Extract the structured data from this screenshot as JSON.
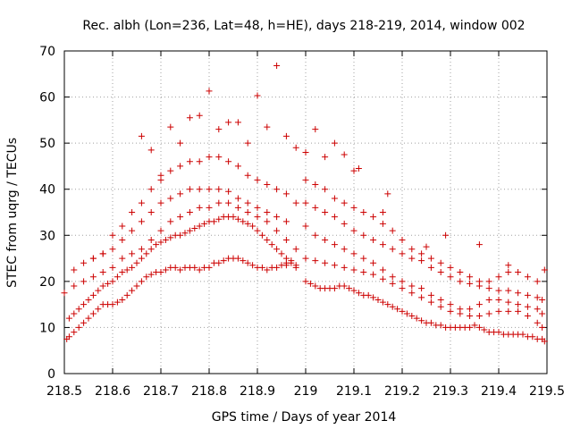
{
  "chart_data": {
    "type": "scatter",
    "title": "Rec. albh (Lon=236, Lat=48, h=HE), days 218-219, 2014, window 002",
    "xlabel": "GPS time / Days of year 2014",
    "ylabel": "STEC from uqrg / TECUs",
    "xlim": [
      218.5,
      219.5
    ],
    "ylim": [
      0,
      70
    ],
    "xticks": [
      "218.5",
      "218.6",
      "218.7",
      "218.8",
      "218.9",
      "219",
      "219.1",
      "219.2",
      "219.3",
      "219.4",
      "219.5"
    ],
    "yticks": [
      "0",
      "10",
      "20",
      "30",
      "40",
      "50",
      "60",
      "70"
    ],
    "grid": true,
    "marker": "+",
    "color": "#cc0000",
    "series": [
      {
        "x": [
          218.505,
          218.51,
          218.52,
          218.53,
          218.54,
          218.55,
          218.56,
          218.57,
          218.58,
          218.59,
          218.6,
          218.61,
          218.62,
          218.63,
          218.64,
          218.65,
          218.66,
          218.67,
          218.68,
          218.69,
          218.7,
          218.71,
          218.72,
          218.73,
          218.74,
          218.75,
          218.76,
          218.77,
          218.78,
          218.79,
          218.8,
          218.81,
          218.82,
          218.83,
          218.84,
          218.85,
          218.86,
          218.87,
          218.88,
          218.89,
          218.9,
          218.91,
          218.92,
          218.93,
          218.94,
          218.95,
          218.96,
          218.97,
          218.98
        ],
        "y": [
          7.5,
          8,
          9,
          10,
          11,
          12,
          13,
          14,
          15,
          15,
          15,
          15.5,
          16,
          17,
          18,
          19,
          20,
          21,
          21.5,
          22,
          22,
          22.5,
          23,
          23,
          22.5,
          23,
          23,
          23,
          22.5,
          23,
          23,
          24,
          24,
          24.5,
          25,
          25,
          25,
          24.5,
          24,
          23.5,
          23,
          23,
          22.5,
          23,
          23,
          23.5,
          24,
          24,
          23.5
        ]
      },
      {
        "x": [
          218.51,
          218.52,
          218.53,
          218.54,
          218.55,
          218.56,
          218.57,
          218.58,
          218.59,
          218.6,
          218.61,
          218.62,
          218.63,
          218.64,
          218.65,
          218.66,
          218.67,
          218.68,
          218.69,
          218.7,
          218.71,
          218.72,
          218.73,
          218.74,
          218.75,
          218.76,
          218.77,
          218.78,
          218.79,
          218.8,
          218.81,
          218.82,
          218.83,
          218.84,
          218.85,
          218.86,
          218.87,
          218.88,
          218.89,
          218.9,
          218.91,
          218.92,
          218.93,
          218.94,
          218.95,
          218.96,
          218.97
        ],
        "y": [
          12,
          13,
          14,
          15,
          16,
          17,
          18,
          19,
          19.5,
          20,
          21,
          22,
          22.5,
          23,
          24,
          25,
          26,
          27,
          28,
          28.5,
          29,
          29.5,
          30,
          30,
          30.5,
          31,
          31.5,
          32,
          32.5,
          33,
          33,
          33.5,
          34,
          34,
          34,
          33.5,
          33,
          32.5,
          32,
          31,
          30,
          29,
          28,
          27,
          26,
          25,
          24.5
        ]
      },
      {
        "x": [
          218.5,
          218.52,
          218.54,
          218.56,
          218.58,
          218.6,
          218.62,
          218.64,
          218.66,
          218.68,
          218.7,
          218.72,
          218.74,
          218.76,
          218.78,
          218.8,
          218.82,
          218.84,
          218.86,
          218.88,
          218.9,
          218.92,
          218.94,
          218.96,
          218.98
        ],
        "y": [
          17.5,
          19,
          20,
          21,
          22,
          23,
          25,
          26,
          27,
          29,
          31,
          33,
          34,
          35,
          36,
          36,
          37,
          37,
          36,
          35,
          34,
          33,
          31,
          29,
          27
        ]
      },
      {
        "x": [
          218.52,
          218.54,
          218.56,
          218.58,
          218.6,
          218.62,
          218.64,
          218.66,
          218.68,
          218.7,
          218.72,
          218.74,
          218.76,
          218.78,
          218.8,
          218.82,
          218.84,
          218.86,
          218.88,
          218.9,
          218.92,
          218.94,
          218.96
        ],
        "y": [
          22.5,
          24,
          25,
          26,
          27,
          29,
          31,
          33,
          35,
          37,
          38,
          39,
          40,
          40,
          40,
          40,
          39.5,
          38,
          37,
          36,
          35,
          34,
          33
        ]
      },
      {
        "x": [
          218.56,
          218.58,
          218.6,
          218.62,
          218.64,
          218.66,
          218.68,
          218.7,
          218.72,
          218.74,
          218.76,
          218.78,
          218.8,
          218.82,
          218.84,
          218.86,
          218.88,
          218.9,
          218.92,
          218.94,
          218.96,
          218.98
        ],
        "y": [
          25,
          26,
          30,
          32,
          35,
          37,
          40,
          42,
          44,
          45,
          46,
          46,
          47,
          47,
          46,
          45,
          43,
          42,
          41,
          40,
          39,
          37
        ]
      },
      {
        "x": [
          218.66,
          218.68,
          218.7,
          218.72,
          218.74,
          218.76,
          218.78,
          218.8,
          218.82,
          218.84,
          218.86,
          218.88,
          218.9,
          218.92,
          218.94,
          218.96,
          218.98
        ],
        "y": [
          51.5,
          48.5,
          43,
          53.5,
          50,
          55.5,
          56,
          61.3,
          53,
          54.5,
          54.5,
          50,
          60.3,
          53.5,
          66.8,
          51.5,
          49
        ]
      },
      {
        "x": [
          218.96,
          218.98,
          219.0,
          219.01,
          219.02,
          219.03,
          219.04,
          219.05,
          219.06,
          219.07,
          219.08,
          219.09,
          219.1,
          219.11,
          219.12,
          219.13,
          219.14,
          219.15,
          219.16,
          219.17,
          219.18,
          219.19,
          219.2,
          219.21,
          219.22,
          219.23,
          219.24,
          219.25,
          219.26,
          219.27,
          219.28,
          219.29,
          219.3,
          219.31,
          219.32,
          219.33,
          219.34,
          219.35,
          219.36,
          219.37,
          219.38,
          219.39,
          219.4,
          219.41,
          219.42,
          219.43,
          219.44,
          219.45,
          219.46,
          219.47,
          219.48,
          219.49,
          219.495
        ],
        "y": [
          23.5,
          23,
          20,
          19.5,
          19,
          18.5,
          18.5,
          18.5,
          18.5,
          19,
          19,
          18.5,
          18,
          17.5,
          17,
          17,
          16.5,
          16,
          15.5,
          15,
          14.5,
          14,
          13.5,
          13,
          12.5,
          12,
          11.5,
          11,
          11,
          10.5,
          10.5,
          10,
          10,
          10,
          10,
          10,
          10,
          10.5,
          10,
          9.5,
          9,
          9,
          9,
          8.5,
          8.5,
          8.5,
          8.5,
          8.5,
          8,
          8,
          7.5,
          7.5,
          7
        ]
      },
      {
        "x": [
          219.0,
          219.02,
          219.04,
          219.06,
          219.08,
          219.1,
          219.12,
          219.14,
          219.16,
          219.18,
          219.2,
          219.22,
          219.24,
          219.26,
          219.28,
          219.3,
          219.32,
          219.34,
          219.36,
          219.38,
          219.4,
          219.42,
          219.44,
          219.46,
          219.48,
          219.49
        ],
        "y": [
          25,
          24.5,
          24,
          23.5,
          23,
          22.5,
          22,
          21.5,
          20.5,
          19.5,
          18.5,
          17.5,
          16.5,
          15.5,
          14.5,
          13.5,
          13,
          12.5,
          12.5,
          13,
          13.5,
          13.5,
          13.5,
          12.5,
          11,
          10
        ]
      },
      {
        "x": [
          219.0,
          219.02,
          219.04,
          219.06,
          219.08,
          219.1,
          219.12,
          219.14,
          219.16,
          219.18,
          219.2,
          219.22,
          219.24,
          219.26,
          219.28,
          219.3,
          219.32,
          219.34,
          219.36,
          219.38,
          219.4,
          219.42,
          219.44,
          219.46,
          219.48,
          219.49
        ],
        "y": [
          32,
          30,
          29,
          28,
          27,
          26,
          25,
          24,
          22.5,
          21,
          20,
          19,
          18.5,
          17,
          16,
          15,
          14,
          14,
          15,
          16,
          16,
          15.5,
          15,
          14.5,
          14,
          13
        ]
      },
      {
        "x": [
          219.0,
          219.02,
          219.04,
          219.06,
          219.08,
          219.1,
          219.12,
          219.14,
          219.16,
          219.18,
          219.2,
          219.22,
          219.24,
          219.26,
          219.28,
          219.3,
          219.32,
          219.34,
          219.36,
          219.38,
          219.4,
          219.42,
          219.44,
          219.46,
          219.48,
          219.49
        ],
        "y": [
          37,
          36,
          35,
          34,
          32.5,
          31,
          30,
          29,
          28,
          27,
          26,
          25,
          24.5,
          23,
          22,
          21,
          20,
          19.5,
          19,
          18.5,
          18,
          18,
          17.5,
          17,
          16.5,
          16
        ]
      },
      {
        "x": [
          219.0,
          219.02,
          219.04,
          219.06,
          219.08,
          219.1,
          219.12,
          219.14,
          219.16,
          219.18,
          219.2,
          219.22,
          219.24,
          219.26,
          219.28,
          219.3,
          219.32,
          219.34,
          219.36,
          219.38,
          219.4,
          219.42,
          219.44,
          219.46,
          219.48,
          219.495
        ],
        "y": [
          42,
          41,
          40,
          38,
          37,
          36,
          35,
          34,
          32.5,
          31,
          29,
          27,
          26,
          25,
          24,
          23,
          22,
          21,
          20,
          20,
          21,
          22,
          22,
          21,
          20,
          22.5
        ]
      },
      {
        "x": [
          219.0,
          219.02,
          219.04,
          219.06,
          219.08,
          219.1,
          219.11,
          219.16,
          219.17,
          219.2,
          219.25,
          219.29,
          219.36,
          219.42
        ],
        "y": [
          48,
          53,
          47,
          50,
          47.5,
          44,
          44.5,
          35,
          39,
          29,
          27.5,
          30,
          28,
          23.5
        ]
      }
    ]
  }
}
